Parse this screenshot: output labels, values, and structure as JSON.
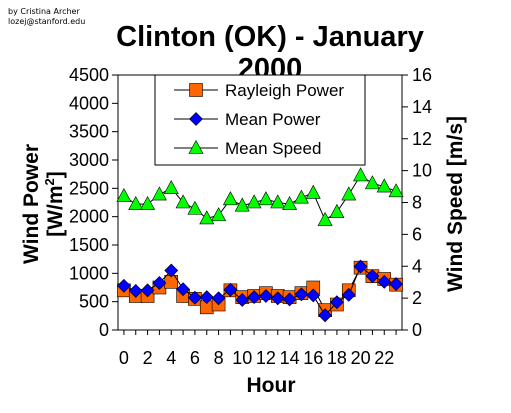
{
  "credit": {
    "author": "by Cristina Archer",
    "email": "lozej@stanford.edu"
  },
  "chart_data": {
    "type": "line",
    "title": "Clinton (OK) - January 2000",
    "xlabel": "Hour",
    "ylabel_left": "Wind Power [W/m²]",
    "ylabel_left_main": "Wind Power",
    "ylabel_left_unit_pre": "[W/m",
    "ylabel_left_unit_sup": "2",
    "ylabel_left_unit_post": "]",
    "ylabel_right": "Wind Speed [m/s]",
    "x_ticks": [
      "0",
      "2",
      "4",
      "6",
      "8",
      "10",
      "12",
      "14",
      "16",
      "18",
      "20",
      "22"
    ],
    "xlim": [
      -0.5,
      23.5
    ],
    "ylim_left": [
      0,
      4500
    ],
    "ylim_right": [
      0,
      16
    ],
    "y_ticks_left": [
      "0",
      "500",
      "1000",
      "1500",
      "2000",
      "2500",
      "3000",
      "3500",
      "4000",
      "4500"
    ],
    "y_ticks_right": [
      "0",
      "2",
      "4",
      "6",
      "8",
      "10",
      "12",
      "14",
      "16"
    ],
    "legend_position": "top-center",
    "grid": false,
    "x": [
      0,
      1,
      2,
      3,
      4,
      5,
      6,
      7,
      8,
      9,
      10,
      11,
      12,
      13,
      14,
      15,
      16,
      17,
      18,
      19,
      20,
      21,
      22,
      23
    ],
    "series": [
      {
        "name": "Rayleigh Power",
        "axis": "left",
        "marker": "square",
        "color": "#FF6600",
        "values": [
          700,
          600,
          600,
          750,
          850,
          600,
          550,
          400,
          450,
          700,
          580,
          600,
          650,
          600,
          580,
          650,
          750,
          350,
          450,
          700,
          1100,
          950,
          900,
          800
        ]
      },
      {
        "name": "Mean Power",
        "axis": "left",
        "marker": "diamond",
        "color": "#0000FF",
        "values": [
          780,
          690,
          700,
          830,
          1050,
          720,
          570,
          580,
          560,
          710,
          530,
          580,
          600,
          560,
          540,
          630,
          610,
          260,
          490,
          620,
          1120,
          950,
          850,
          810
        ]
      },
      {
        "name": "Mean Speed",
        "axis": "right",
        "marker": "triangle",
        "color": "#00FF00",
        "values": [
          8.4,
          7.9,
          7.9,
          8.5,
          8.9,
          8.0,
          7.6,
          7.0,
          7.2,
          8.2,
          7.8,
          8.0,
          8.2,
          8.0,
          7.9,
          8.3,
          8.6,
          6.9,
          7.4,
          8.5,
          9.7,
          9.2,
          9.0,
          8.7
        ]
      }
    ]
  }
}
